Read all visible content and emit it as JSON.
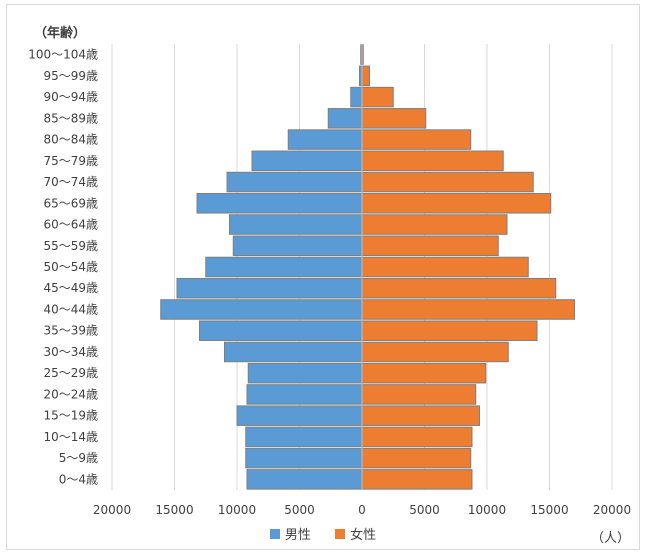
{
  "chart_data": {
    "type": "bar",
    "orientation": "horizontal-population-pyramid",
    "y_title": "（年齢）",
    "unit_label": "（人）",
    "categories": [
      "100〜104歳",
      "95〜99歳",
      "90〜94歳",
      "85〜89歳",
      "80〜84歳",
      "75〜79歳",
      "70〜74歳",
      "65〜69歳",
      "60〜64歳",
      "55〜59歳",
      "50〜54歳",
      "45〜49歳",
      "40〜44歳",
      "35〜39歳",
      "30〜34歳",
      "25〜29歳",
      "20〜24歳",
      "15〜19歳",
      "10〜14歳",
      "5〜9歳",
      "0〜4歳"
    ],
    "series": [
      {
        "name": "男性",
        "color": "#5b9bd5",
        "values": [
          100,
          200,
          900,
          2700,
          5900,
          8800,
          10800,
          13200,
          10600,
          10300,
          12500,
          14800,
          16100,
          13000,
          11000,
          9100,
          9200,
          10000,
          9300,
          9300,
          9200
        ]
      },
      {
        "name": "女性",
        "color": "#ed7d31",
        "values": [
          100,
          600,
          2500,
          5100,
          8700,
          11300,
          13700,
          15100,
          11600,
          10900,
          13300,
          15500,
          17000,
          14000,
          11700,
          9900,
          9100,
          9400,
          8800,
          8700,
          8800
        ]
      }
    ],
    "x_ticks": [
      "20000",
      "15000",
      "10000",
      "5000",
      "0",
      "5000",
      "10000",
      "15000",
      "20000"
    ],
    "xlim": [
      -20000,
      20000
    ],
    "grid": true,
    "legend_position": "bottom"
  }
}
